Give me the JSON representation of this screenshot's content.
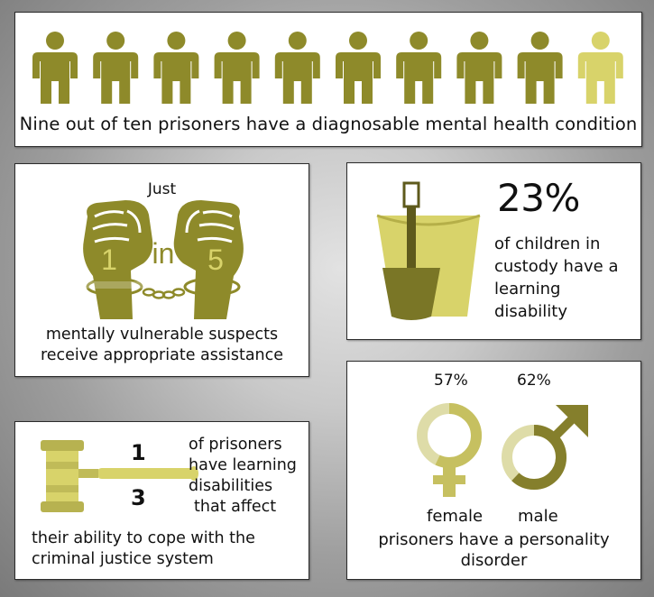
{
  "colors": {
    "olive": "#8e8a2a",
    "light_olive": "#d8d36a",
    "female_fill": "#c6c060",
    "male_fill": "#857f2c",
    "ring_track": "#dedca8"
  },
  "prisoners": {
    "icon_name": "person-icon",
    "total": 10,
    "highlighted": 9,
    "caption": "Nine out of ten prisoners have a diagnosable mental health condition"
  },
  "suspects": {
    "just": "Just",
    "numerator": "1",
    "word": "in",
    "denominator": "5",
    "caption_line1": "mentally vulnerable suspects",
    "caption_line2": "receive appropriate assistance"
  },
  "children": {
    "stat": "23%",
    "lines": [
      "of children in",
      "custody have a",
      "learning",
      "disability"
    ]
  },
  "learning": {
    "numerator": "1",
    "denominator": "3",
    "side_lines": [
      "of prisoners",
      "have learning",
      "disabilities",
      "that affect"
    ],
    "bottom_lines": [
      "their ability to cope with the",
      "criminal justice system"
    ]
  },
  "personality": {
    "female_pct_label": "57%",
    "female_value": 57,
    "male_pct_label": "62%",
    "male_value": 62,
    "female_label": "female",
    "male_label": "male",
    "caption_line1": "prisoners have a personality",
    "caption_line2": "disorder"
  }
}
